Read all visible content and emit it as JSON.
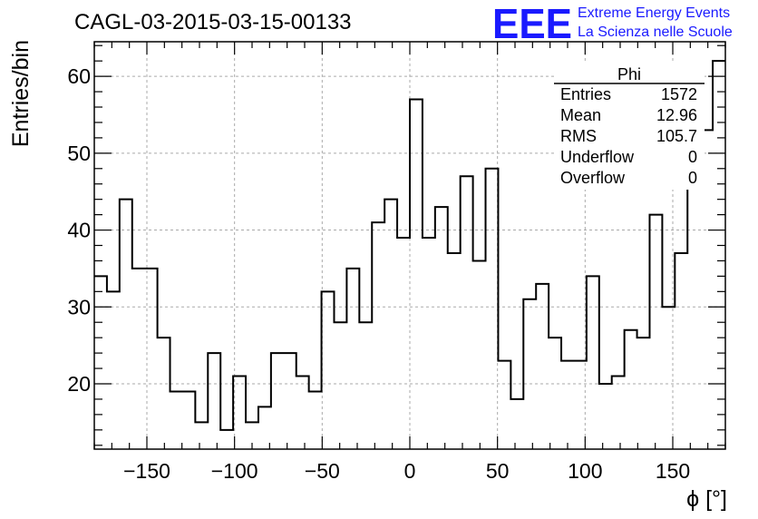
{
  "chart_data": {
    "type": "histogram",
    "title": "CAGL-03-2015-03-15-00133",
    "xlabel": "ϕ [°]",
    "ylabel": "Entries/bin",
    "xlim": [
      -180,
      180
    ],
    "ylim": [
      11.5,
      64.5
    ],
    "xticks": [
      -150,
      -100,
      -50,
      0,
      50,
      100,
      150
    ],
    "yticks": [
      20,
      30,
      40,
      50,
      60
    ],
    "grid": true,
    "bin_width": 7.2,
    "bin_edges_start": -180,
    "values": [
      34,
      32,
      44,
      35,
      35,
      26,
      19,
      19,
      15,
      24,
      14,
      21,
      15,
      17,
      24,
      24,
      21,
      19,
      32,
      28,
      35,
      28,
      41,
      44,
      39,
      57,
      39,
      43,
      37,
      47,
      36,
      48,
      23,
      18,
      31,
      33,
      26,
      23,
      23,
      34,
      20,
      21,
      27,
      26,
      42,
      30,
      37,
      51,
      53,
      62
    ],
    "stats": {
      "name": "Phi",
      "rows": [
        {
          "label": "Entries",
          "value": "1572"
        },
        {
          "label": "Mean",
          "value": "12.96"
        },
        {
          "label": "RMS",
          "value": "105.7"
        },
        {
          "label": "Underflow",
          "value": "0"
        },
        {
          "label": "Overflow",
          "value": "0"
        }
      ]
    },
    "logo": {
      "mark": "EEE",
      "line1": "Extreme Energy Events",
      "line2": "La Scienza nelle Scuole",
      "color": "#1a1aff"
    }
  }
}
